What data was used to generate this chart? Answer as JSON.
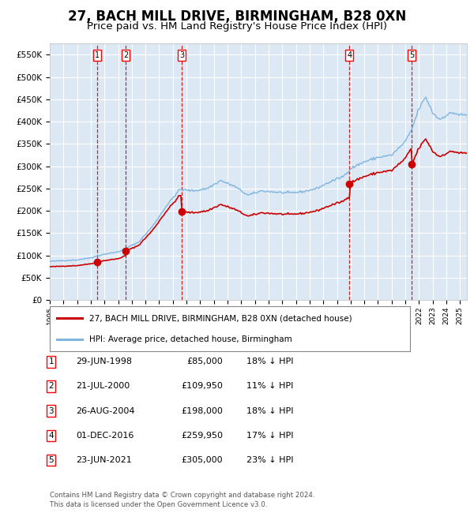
{
  "title": "27, BACH MILL DRIVE, BIRMINGHAM, B28 0XN",
  "subtitle": "Price paid vs. HM Land Registry's House Price Index (HPI)",
  "footnote1": "Contains HM Land Registry data © Crown copyright and database right 2024.",
  "footnote2": "This data is licensed under the Open Government Licence v3.0.",
  "legend_line1": "27, BACH MILL DRIVE, BIRMINGHAM, B28 0XN (detached house)",
  "legend_line2": "HPI: Average price, detached house, Birmingham",
  "transactions": [
    {
      "num": 1,
      "date": "29-JUN-1998",
      "price": 85000,
      "pct": "18% ↓ HPI",
      "year": 1998.49
    },
    {
      "num": 2,
      "date": "21-JUL-2000",
      "price": 109950,
      "pct": "11% ↓ HPI",
      "year": 2000.55
    },
    {
      "num": 3,
      "date": "26-AUG-2004",
      "price": 198000,
      "pct": "18% ↓ HPI",
      "year": 2004.65
    },
    {
      "num": 4,
      "date": "01-DEC-2016",
      "price": 259950,
      "pct": "17% ↓ HPI",
      "year": 2016.92
    },
    {
      "num": 5,
      "date": "23-JUN-2021",
      "price": 305000,
      "pct": "23% ↓ HPI",
      "year": 2021.48
    }
  ],
  "ylim": [
    0,
    575000
  ],
  "xlim_start": 1995.0,
  "xlim_end": 2025.5,
  "background_color": "#dce9f5",
  "hpi_line_color": "#7eb4e0",
  "price_line_color": "#cc0000",
  "dot_color": "#cc0000",
  "vline_color": "#cc0000",
  "grid_color": "#ffffff",
  "title_fontsize": 12,
  "subtitle_fontsize": 9.5,
  "hpi_anchors": {
    "1995.0": 87000,
    "1997.0": 90000,
    "1998.0": 95000,
    "1999.0": 103000,
    "2000.0": 108000,
    "2001.5": 130000,
    "2002.5": 165000,
    "2003.5": 210000,
    "2004.5": 248000,
    "2005.5": 245000,
    "2006.5": 250000,
    "2007.5": 268000,
    "2008.5": 255000,
    "2009.5": 235000,
    "2010.5": 245000,
    "2011.5": 242000,
    "2012.5": 240000,
    "2013.5": 243000,
    "2014.5": 250000,
    "2015.5": 265000,
    "2016.5": 278000,
    "2017.0": 295000,
    "2018.0": 310000,
    "2019.0": 320000,
    "2020.0": 325000,
    "2021.0": 355000,
    "2021.5": 385000,
    "2022.0": 430000,
    "2022.5": 455000,
    "2023.0": 420000,
    "2023.5": 405000,
    "2024.0": 415000,
    "2024.5": 420000,
    "2025.0": 415000
  }
}
